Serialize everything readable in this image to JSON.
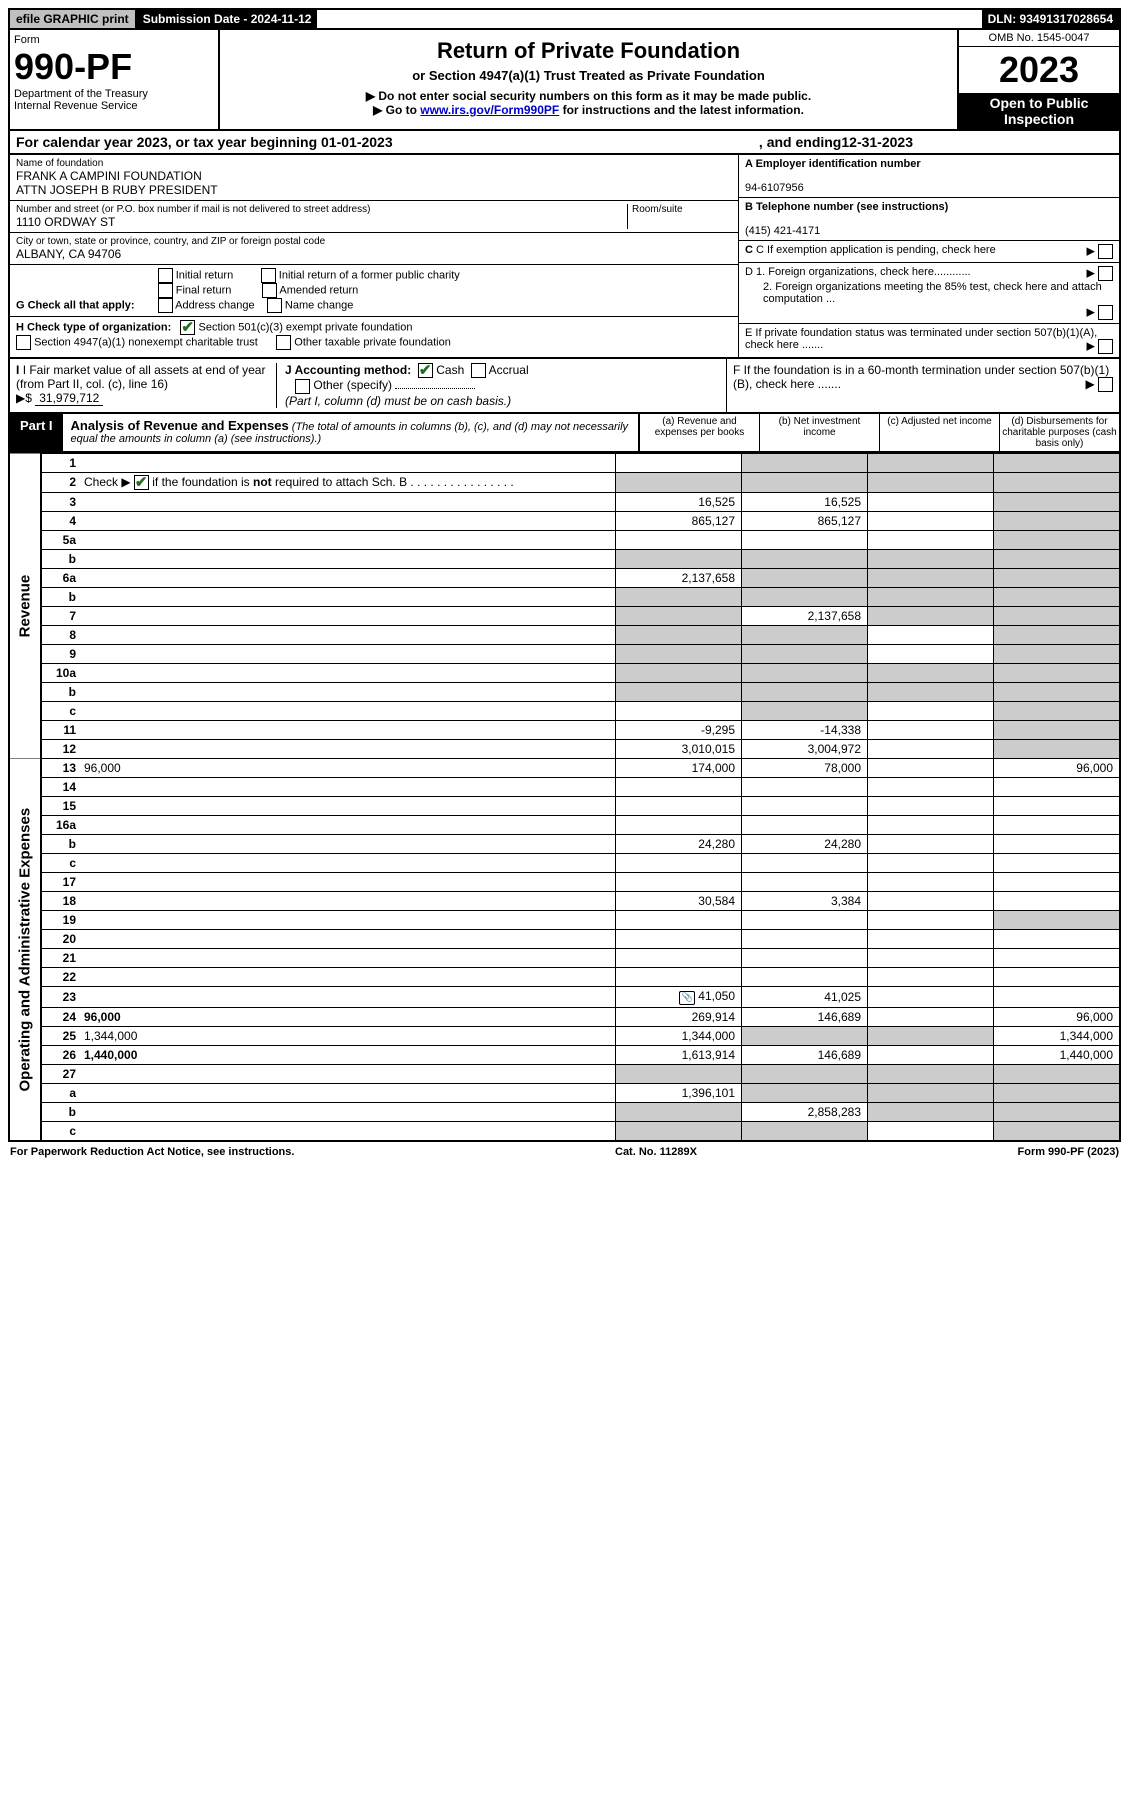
{
  "colors": {
    "black": "#000000",
    "white": "#ffffff",
    "grey_btn": "#c0c0c0",
    "grey_cell": "#cccccc",
    "check_green": "#1f6f1f",
    "link_blue": "#0000cc"
  },
  "top": {
    "efile": "efile GRAPHIC print",
    "submission": "Submission Date - 2024-11-12",
    "dln": "DLN: 93491317028654"
  },
  "header": {
    "form_word": "Form",
    "form_number": "990-PF",
    "dept": "Department of the Treasury",
    "irs": "Internal Revenue Service",
    "title": "Return of Private Foundation",
    "subtitle": "or Section 4947(a)(1) Trust Treated as Private Foundation",
    "arrow1": "▶ Do not enter social security numbers on this form as it may be made public.",
    "arrow2_prefix": "▶ Go to ",
    "arrow2_link": "www.irs.gov/Form990PF",
    "arrow2_suffix": " for instructions and the latest information.",
    "omb": "OMB No. 1545-0047",
    "year": "2023",
    "open1": "Open to Public",
    "open2": "Inspection"
  },
  "cal_year": {
    "prefix": "For calendar year 2023, or tax year beginning ",
    "begin": "01-01-2023",
    "mid": ", and ending ",
    "end": "12-31-2023"
  },
  "identity": {
    "name_label": "Name of foundation",
    "name1": "FRANK A CAMPINI FOUNDATION",
    "name2": "ATTN JOSEPH B RUBY PRESIDENT",
    "addr_label": "Number and street (or P.O. box number if mail is not delivered to street address)",
    "room_label": "Room/suite",
    "addr": "1110 ORDWAY ST",
    "city_label": "City or town, state or province, country, and ZIP or foreign postal code",
    "city": "ALBANY, CA  94706",
    "ein_label": "A Employer identification number",
    "ein": "94-6107956",
    "phone_label": "B Telephone number (see instructions)",
    "phone": "(415) 421-4171",
    "c_label": "C If exemption application is pending, check here",
    "d1": "D 1. Foreign organizations, check here............",
    "d2": "2. Foreign organizations meeting the 85% test, check here and attach computation ...",
    "e": "E  If private foundation status was terminated under section 507(b)(1)(A), check here .......",
    "f": "F  If the foundation is in a 60-month termination under section 507(b)(1)(B), check here .......",
    "g_label": "G Check all that apply:",
    "g_opts": [
      "Initial return",
      "Final return",
      "Address change",
      "Initial return of a former public charity",
      "Amended return",
      "Name change"
    ],
    "h_label": "H Check type of organization:",
    "h_opt1": "Section 501(c)(3) exempt private foundation",
    "h_opt2": "Section 4947(a)(1) nonexempt charitable trust",
    "h_opt3": "Other taxable private foundation",
    "i_label": "I Fair market value of all assets at end of year (from Part II, col. (c), line 16)",
    "i_prefix": "▶$",
    "i_value": "31,979,712",
    "j_label": "J Accounting method:",
    "j_cash": "Cash",
    "j_accrual": "Accrual",
    "j_other": "Other (specify)",
    "j_note": "(Part I, column (d) must be on cash basis.)"
  },
  "part1": {
    "label": "Part I",
    "title": "Analysis of Revenue and Expenses",
    "note": "(The total of amounts in columns (b), (c), and (d) may not necessarily equal the amounts in column (a) (see instructions).)",
    "col_a": "(a)   Revenue and expenses per books",
    "col_b": "(b)   Net investment income",
    "col_c": "(c)   Adjusted net income",
    "col_d": "(d)   Disbursements for charitable purposes (cash basis only)"
  },
  "sections": {
    "revenue": "Revenue",
    "expenses": "Operating and Administrative Expenses"
  },
  "rows": [
    {
      "n": "1",
      "d": "",
      "a": "",
      "b": "",
      "c": "",
      "grey": [
        "b",
        "c",
        "d"
      ]
    },
    {
      "n": "2",
      "d": "",
      "a": "",
      "b": "",
      "c": "",
      "grey": [
        "a",
        "b",
        "c",
        "d"
      ],
      "check": true,
      "bold_not": true
    },
    {
      "n": "3",
      "d": "",
      "a": "16,525",
      "b": "16,525",
      "c": "",
      "grey": [
        "d"
      ]
    },
    {
      "n": "4",
      "d": "",
      "a": "865,127",
      "b": "865,127",
      "c": "",
      "grey": [
        "d"
      ]
    },
    {
      "n": "5a",
      "d": "",
      "a": "",
      "b": "",
      "c": "",
      "grey": [
        "d"
      ]
    },
    {
      "n": "b",
      "d": "",
      "a": "",
      "b": "",
      "c": "",
      "grey": [
        "a",
        "b",
        "c",
        "d"
      ]
    },
    {
      "n": "6a",
      "d": "",
      "a": "2,137,658",
      "b": "",
      "c": "",
      "grey": [
        "b",
        "c",
        "d"
      ]
    },
    {
      "n": "b",
      "d": "",
      "a": "",
      "b": "",
      "c": "",
      "grey": [
        "a",
        "b",
        "c",
        "d"
      ]
    },
    {
      "n": "7",
      "d": "",
      "a": "",
      "b": "2,137,658",
      "c": "",
      "grey": [
        "a",
        "c",
        "d"
      ]
    },
    {
      "n": "8",
      "d": "",
      "a": "",
      "b": "",
      "c": "",
      "grey": [
        "a",
        "b",
        "d"
      ]
    },
    {
      "n": "9",
      "d": "",
      "a": "",
      "b": "",
      "c": "",
      "grey": [
        "a",
        "b",
        "d"
      ]
    },
    {
      "n": "10a",
      "d": "",
      "a": "",
      "b": "",
      "c": "",
      "grey": [
        "a",
        "b",
        "c",
        "d"
      ]
    },
    {
      "n": "b",
      "d": "",
      "a": "",
      "b": "",
      "c": "",
      "grey": [
        "a",
        "b",
        "c",
        "d"
      ]
    },
    {
      "n": "c",
      "d": "",
      "a": "",
      "b": "",
      "c": "",
      "grey": [
        "b",
        "d"
      ]
    },
    {
      "n": "11",
      "d": "",
      "a": "-9,295",
      "b": "-14,338",
      "c": "",
      "grey": [
        "d"
      ]
    },
    {
      "n": "12",
      "d": "",
      "a": "3,010,015",
      "b": "3,004,972",
      "c": "",
      "grey": [
        "d"
      ],
      "bold": true
    }
  ],
  "exp_rows": [
    {
      "n": "13",
      "d": "96,000",
      "a": "174,000",
      "b": "78,000",
      "c": ""
    },
    {
      "n": "14",
      "d": "",
      "a": "",
      "b": "",
      "c": ""
    },
    {
      "n": "15",
      "d": "",
      "a": "",
      "b": "",
      "c": ""
    },
    {
      "n": "16a",
      "d": "",
      "a": "",
      "b": "",
      "c": ""
    },
    {
      "n": "b",
      "d": "",
      "a": "24,280",
      "b": "24,280",
      "c": ""
    },
    {
      "n": "c",
      "d": "",
      "a": "",
      "b": "",
      "c": ""
    },
    {
      "n": "17",
      "d": "",
      "a": "",
      "b": "",
      "c": ""
    },
    {
      "n": "18",
      "d": "",
      "a": "30,584",
      "b": "3,384",
      "c": ""
    },
    {
      "n": "19",
      "d": "",
      "a": "",
      "b": "",
      "c": "",
      "grey": [
        "d"
      ]
    },
    {
      "n": "20",
      "d": "",
      "a": "",
      "b": "",
      "c": ""
    },
    {
      "n": "21",
      "d": "",
      "a": "",
      "b": "",
      "c": ""
    },
    {
      "n": "22",
      "d": "",
      "a": "",
      "b": "",
      "c": ""
    },
    {
      "n": "23",
      "d": "",
      "a": "41,050",
      "b": "41,025",
      "c": "",
      "attach": true
    },
    {
      "n": "24",
      "d": "96,000",
      "a": "269,914",
      "b": "146,689",
      "c": "",
      "bold": true
    },
    {
      "n": "25",
      "d": "1,344,000",
      "a": "1,344,000",
      "b": "",
      "c": "",
      "grey": [
        "b",
        "c"
      ]
    },
    {
      "n": "26",
      "d": "1,440,000",
      "a": "1,613,914",
      "b": "146,689",
      "c": "",
      "bold": true
    },
    {
      "n": "27",
      "d": "",
      "a": "",
      "b": "",
      "c": "",
      "grey": [
        "a",
        "b",
        "c",
        "d"
      ]
    },
    {
      "n": "a",
      "d": "",
      "a": "1,396,101",
      "b": "",
      "c": "",
      "grey": [
        "b",
        "c",
        "d"
      ],
      "bold": true
    },
    {
      "n": "b",
      "d": "",
      "a": "",
      "b": "2,858,283",
      "c": "",
      "grey": [
        "a",
        "c",
        "d"
      ],
      "bold": true
    },
    {
      "n": "c",
      "d": "",
      "a": "",
      "b": "",
      "c": "",
      "grey": [
        "a",
        "b",
        "d"
      ],
      "bold": true
    }
  ],
  "footer": {
    "left": "For Paperwork Reduction Act Notice, see instructions.",
    "mid": "Cat. No. 11289X",
    "right": "Form 990-PF (2023)"
  }
}
